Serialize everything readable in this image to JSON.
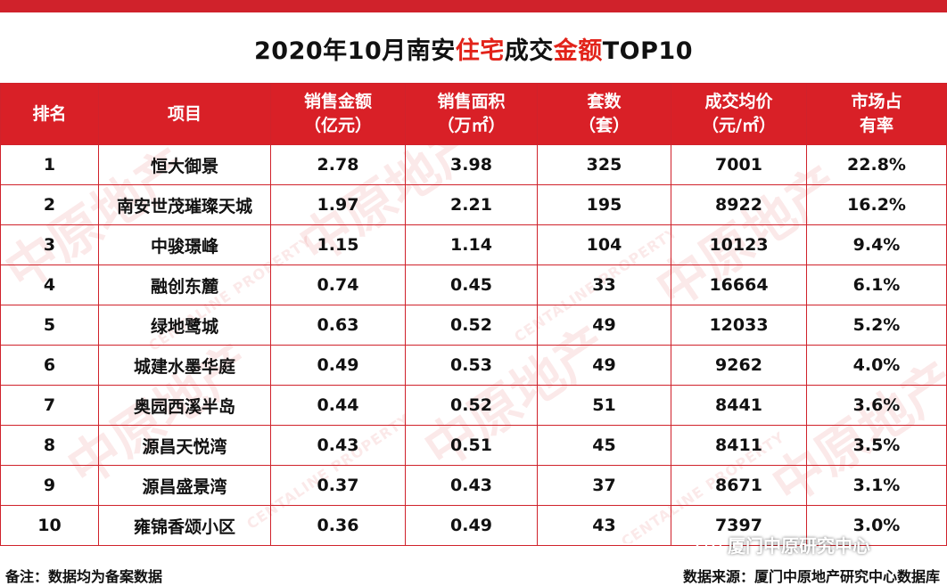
{
  "title": {
    "part1": "2020年10月南安",
    "part2": "住宅",
    "part3": "成交",
    "part4": "金额",
    "part5": "TOP10"
  },
  "table": {
    "headers": [
      {
        "line1": "排名",
        "line2": ""
      },
      {
        "line1": "项目",
        "line2": ""
      },
      {
        "line1": "销售金额",
        "line2": "（亿元）"
      },
      {
        "line1": "销售面积",
        "line2": "（万㎡）"
      },
      {
        "line1": "套数",
        "line2": "（套）"
      },
      {
        "line1": "成交均价",
        "line2": "（元/㎡）"
      },
      {
        "line1": "市场占",
        "line2": "有率"
      }
    ],
    "rows": [
      {
        "rank": "1",
        "project": "恒大御景",
        "amount": "2.78",
        "area": "3.98",
        "units": "325",
        "price": "7001",
        "share": "22.8%"
      },
      {
        "rank": "2",
        "project": "南安世茂璀璨天城",
        "amount": "1.97",
        "area": "2.21",
        "units": "195",
        "price": "8922",
        "share": "16.2%"
      },
      {
        "rank": "3",
        "project": "中骏璟峰",
        "amount": "1.15",
        "area": "1.14",
        "units": "104",
        "price": "10123",
        "share": "9.4%"
      },
      {
        "rank": "4",
        "project": "融创东麓",
        "amount": "0.74",
        "area": "0.45",
        "units": "33",
        "price": "16664",
        "share": "6.1%"
      },
      {
        "rank": "5",
        "project": "绿地鹭城",
        "amount": "0.63",
        "area": "0.52",
        "units": "49",
        "price": "12033",
        "share": "5.2%"
      },
      {
        "rank": "6",
        "project": "城建水墨华庭",
        "amount": "0.49",
        "area": "0.53",
        "units": "49",
        "price": "9262",
        "share": "4.0%"
      },
      {
        "rank": "7",
        "project": "奥园西溪半岛",
        "amount": "0.44",
        "area": "0.52",
        "units": "51",
        "price": "8441",
        "share": "3.6%"
      },
      {
        "rank": "8",
        "project": "源昌天悦湾",
        "amount": "0.43",
        "area": "0.51",
        "units": "45",
        "price": "8411",
        "share": "3.5%"
      },
      {
        "rank": "9",
        "project": "源昌盛景湾",
        "amount": "0.37",
        "area": "0.43",
        "units": "37",
        "price": "8671",
        "share": "3.1%"
      },
      {
        "rank": "10",
        "project": "雍锦香颂小区",
        "amount": "0.36",
        "area": "0.49",
        "units": "43",
        "price": "7397",
        "share": "3.0%"
      }
    ]
  },
  "footer": {
    "left": "备注：数据均为备案数据",
    "right": "数据来源：厦门中原地产研究中心数据库"
  },
  "watermark": {
    "brand": "中原地产",
    "brand_en": "CENTALINE PROPERTY"
  },
  "wechat": {
    "label": "厦门中原研究中心",
    "icon": "wechat-icon"
  },
  "colors": {
    "accent_red": "#d92027",
    "title_red": "#e2231a"
  }
}
